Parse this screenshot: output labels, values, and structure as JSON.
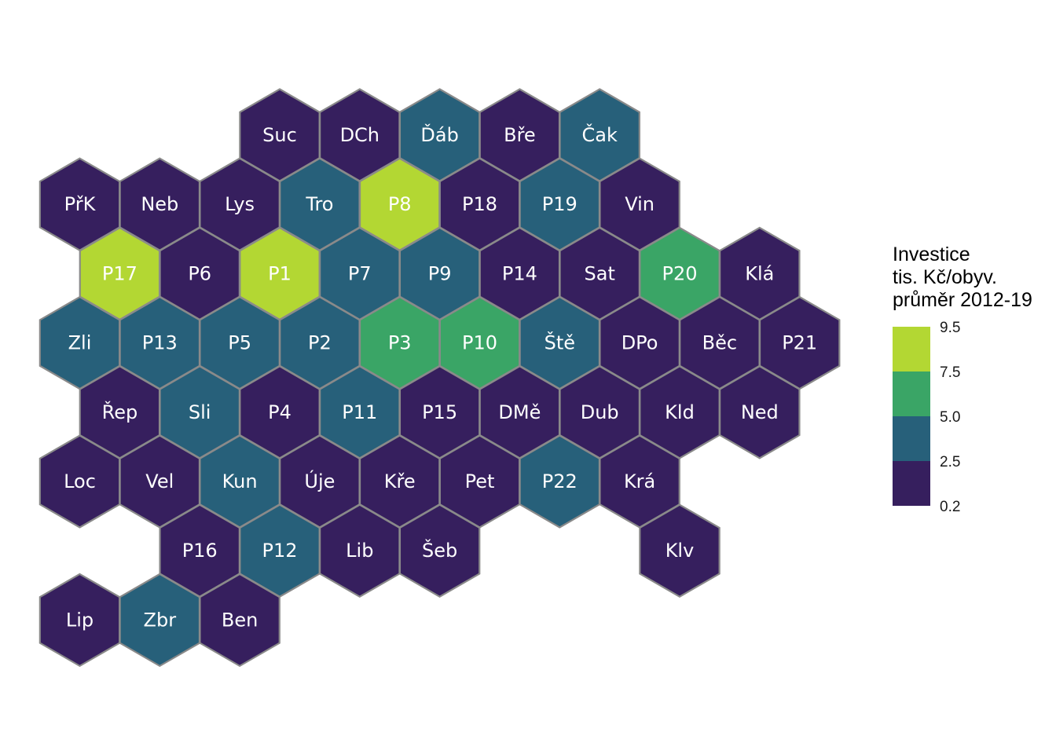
{
  "legend": {
    "title_lines": [
      "Investice",
      "tis. Kč/obyv.",
      "průměr 2012-19"
    ],
    "ticks": [
      "9.5",
      "7.5",
      "5.0",
      "2.5",
      "0.2"
    ],
    "bins": [
      {
        "range": "7.5–9.5",
        "color": "#b3d733"
      },
      {
        "range": "5.0–7.5",
        "color": "#3aa566"
      },
      {
        "range": "2.5–5.0",
        "color": "#27607a"
      },
      {
        "range": "0.2–2.5",
        "color": "#361f5e"
      }
    ]
  },
  "districts": [
    {
      "label": "Suc",
      "row": 0,
      "col": 0,
      "bin": 3
    },
    {
      "label": "DCh",
      "row": 0,
      "col": 1,
      "bin": 3
    },
    {
      "label": "Ďáb",
      "row": 0,
      "col": 2,
      "bin": 2
    },
    {
      "label": "Bře",
      "row": 0,
      "col": 3,
      "bin": 3
    },
    {
      "label": "Čak",
      "row": 0,
      "col": 4,
      "bin": 2
    },
    {
      "label": "PřK",
      "row": 1,
      "col": -2,
      "bin": 3
    },
    {
      "label": "Neb",
      "row": 1,
      "col": -1,
      "bin": 3
    },
    {
      "label": "Lys",
      "row": 1,
      "col": 0,
      "bin": 3
    },
    {
      "label": "Tro",
      "row": 1,
      "col": 1,
      "bin": 2
    },
    {
      "label": "P8",
      "row": 1,
      "col": 2,
      "bin": 0
    },
    {
      "label": "P18",
      "row": 1,
      "col": 3,
      "bin": 3
    },
    {
      "label": "P19",
      "row": 1,
      "col": 4,
      "bin": 2
    },
    {
      "label": "Vin",
      "row": 1,
      "col": 5,
      "bin": 3
    },
    {
      "label": "P17",
      "row": 2,
      "col": -2,
      "bin": 0
    },
    {
      "label": "P6",
      "row": 2,
      "col": -1,
      "bin": 3
    },
    {
      "label": "P1",
      "row": 2,
      "col": 0,
      "bin": 0
    },
    {
      "label": "P7",
      "row": 2,
      "col": 1,
      "bin": 2
    },
    {
      "label": "P9",
      "row": 2,
      "col": 2,
      "bin": 2
    },
    {
      "label": "P14",
      "row": 2,
      "col": 3,
      "bin": 3
    },
    {
      "label": "Sat",
      "row": 2,
      "col": 4,
      "bin": 3
    },
    {
      "label": "P20",
      "row": 2,
      "col": 5,
      "bin": 1
    },
    {
      "label": "Klá",
      "row": 2,
      "col": 6,
      "bin": 3
    },
    {
      "label": "Zli",
      "row": 3,
      "col": -2,
      "bin": 2
    },
    {
      "label": "P13",
      "row": 3,
      "col": -1,
      "bin": 2
    },
    {
      "label": "P5",
      "row": 3,
      "col": 0,
      "bin": 2
    },
    {
      "label": "P2",
      "row": 3,
      "col": 1,
      "bin": 2
    },
    {
      "label": "P3",
      "row": 3,
      "col": 2,
      "bin": 1
    },
    {
      "label": "P10",
      "row": 3,
      "col": 3,
      "bin": 1
    },
    {
      "label": "Ště",
      "row": 3,
      "col": 4,
      "bin": 2
    },
    {
      "label": "DPo",
      "row": 3,
      "col": 5,
      "bin": 3
    },
    {
      "label": "Běc",
      "row": 3,
      "col": 6,
      "bin": 3
    },
    {
      "label": "P21",
      "row": 3,
      "col": 7,
      "bin": 3
    },
    {
      "label": "Řep",
      "row": 4,
      "col": -2,
      "bin": 3
    },
    {
      "label": "Sli",
      "row": 4,
      "col": -1,
      "bin": 2
    },
    {
      "label": "P4",
      "row": 4,
      "col": 0,
      "bin": 3
    },
    {
      "label": "P11",
      "row": 4,
      "col": 1,
      "bin": 2
    },
    {
      "label": "P15",
      "row": 4,
      "col": 2,
      "bin": 3
    },
    {
      "label": "DMě",
      "row": 4,
      "col": 3,
      "bin": 3
    },
    {
      "label": "Dub",
      "row": 4,
      "col": 4,
      "bin": 3
    },
    {
      "label": "Kld",
      "row": 4,
      "col": 5,
      "bin": 3
    },
    {
      "label": "Ned",
      "row": 4,
      "col": 6,
      "bin": 3
    },
    {
      "label": "Loc",
      "row": 5,
      "col": -2,
      "bin": 3
    },
    {
      "label": "Vel",
      "row": 5,
      "col": -1,
      "bin": 3
    },
    {
      "label": "Kun",
      "row": 5,
      "col": 0,
      "bin": 2
    },
    {
      "label": "Úje",
      "row": 5,
      "col": 1,
      "bin": 3
    },
    {
      "label": "Kře",
      "row": 5,
      "col": 2,
      "bin": 3
    },
    {
      "label": "Pet",
      "row": 5,
      "col": 3,
      "bin": 3
    },
    {
      "label": "P22",
      "row": 5,
      "col": 4,
      "bin": 2
    },
    {
      "label": "Krá",
      "row": 5,
      "col": 5,
      "bin": 3
    },
    {
      "label": "P16",
      "row": 6,
      "col": -1,
      "bin": 3
    },
    {
      "label": "P12",
      "row": 6,
      "col": 0,
      "bin": 2
    },
    {
      "label": "Lib",
      "row": 6,
      "col": 1,
      "bin": 3
    },
    {
      "label": "Šeb",
      "row": 6,
      "col": 2,
      "bin": 3
    },
    {
      "label": "Klv",
      "row": 6,
      "col": 5,
      "bin": 3
    },
    {
      "label": "Lip",
      "row": 7,
      "col": -2,
      "bin": 3
    },
    {
      "label": "Zbr",
      "row": 7,
      "col": -1,
      "bin": 2
    },
    {
      "label": "Ben",
      "row": 7,
      "col": 0,
      "bin": 3
    }
  ]
}
